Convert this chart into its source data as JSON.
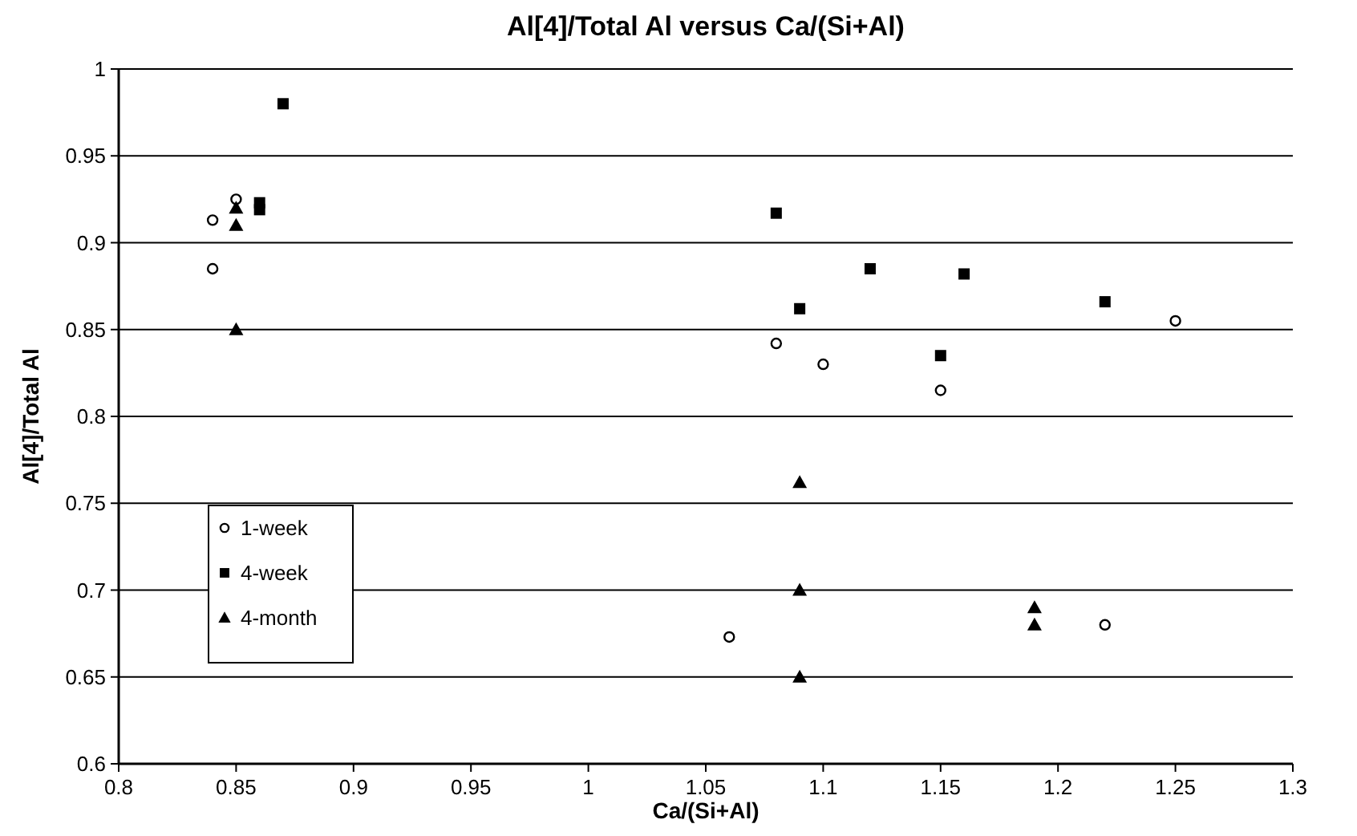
{
  "chart_data": {
    "type": "scatter",
    "title": "Al[4]/Total Al versus Ca/(Si+Al)",
    "xlabel": "Ca/(Si+Al)",
    "ylabel": "Al[4]/Total Al",
    "xlim": [
      0.8,
      1.3
    ],
    "xticks": [
      0.8,
      0.85,
      0.9,
      0.95,
      1,
      1.05,
      1.1,
      1.15,
      1.2,
      1.25,
      1.3
    ],
    "ylim": [
      0.6,
      1
    ],
    "yticks": [
      0.6,
      0.65,
      0.7,
      0.75,
      0.8,
      0.85,
      0.9,
      0.95,
      1
    ],
    "grid": "y",
    "legend": "left",
    "series": [
      {
        "name": "1-week",
        "color": "#000000",
        "marker": "circle",
        "x": [
          0.84,
          0.84,
          0.85,
          1.08,
          1.1,
          1.15,
          1.25,
          1.06,
          1.22
        ],
        "values": [
          0.913,
          0.885,
          0.925,
          0.842,
          0.83,
          0.815,
          0.855,
          0.673,
          0.68
        ]
      },
      {
        "name": "4-week",
        "color": "#000000",
        "marker": "square",
        "x": [
          0.87,
          0.86,
          0.86,
          1.08,
          1.09,
          1.12,
          1.16,
          1.15,
          1.22
        ],
        "values": [
          0.98,
          0.923,
          0.919,
          0.917,
          0.862,
          0.885,
          0.882,
          0.835,
          0.866
        ]
      },
      {
        "name": "4-month",
        "color": "#000000",
        "marker": "triangle",
        "x": [
          0.85,
          0.85,
          0.85,
          1.09,
          1.09,
          1.09,
          1.19,
          1.19
        ],
        "values": [
          0.92,
          0.91,
          0.85,
          0.762,
          0.7,
          0.65,
          0.69,
          0.68
        ]
      }
    ]
  }
}
